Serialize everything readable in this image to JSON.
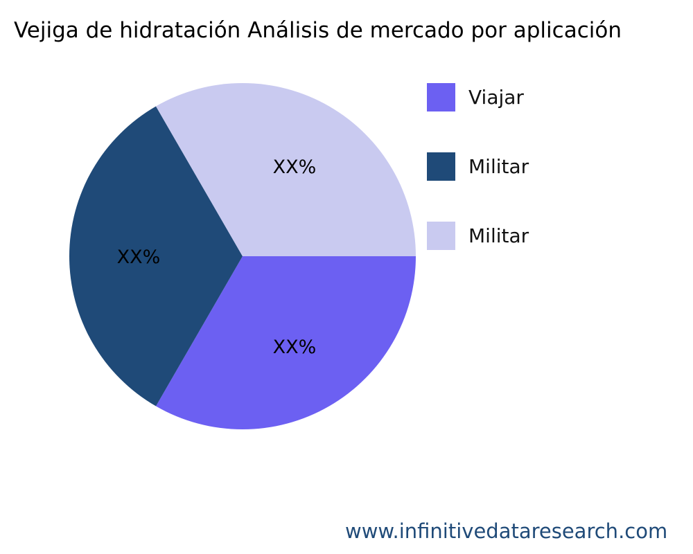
{
  "chart_data": {
    "type": "pie",
    "title": "Vejiga de hidratación Análisis de mercado por aplicación",
    "slices": [
      {
        "label": "Viajar",
        "value": 33.33,
        "data_label": "XX%",
        "color": "#6c60f2"
      },
      {
        "label": "Militar",
        "value": 33.33,
        "data_label": "XX%",
        "color": "#1f4a78"
      },
      {
        "label": "Militar",
        "value": 33.33,
        "data_label": "XX%",
        "color": "#c9caf0"
      }
    ],
    "legend_position": "right"
  },
  "footer": "www.infinitivedataresearch.com"
}
